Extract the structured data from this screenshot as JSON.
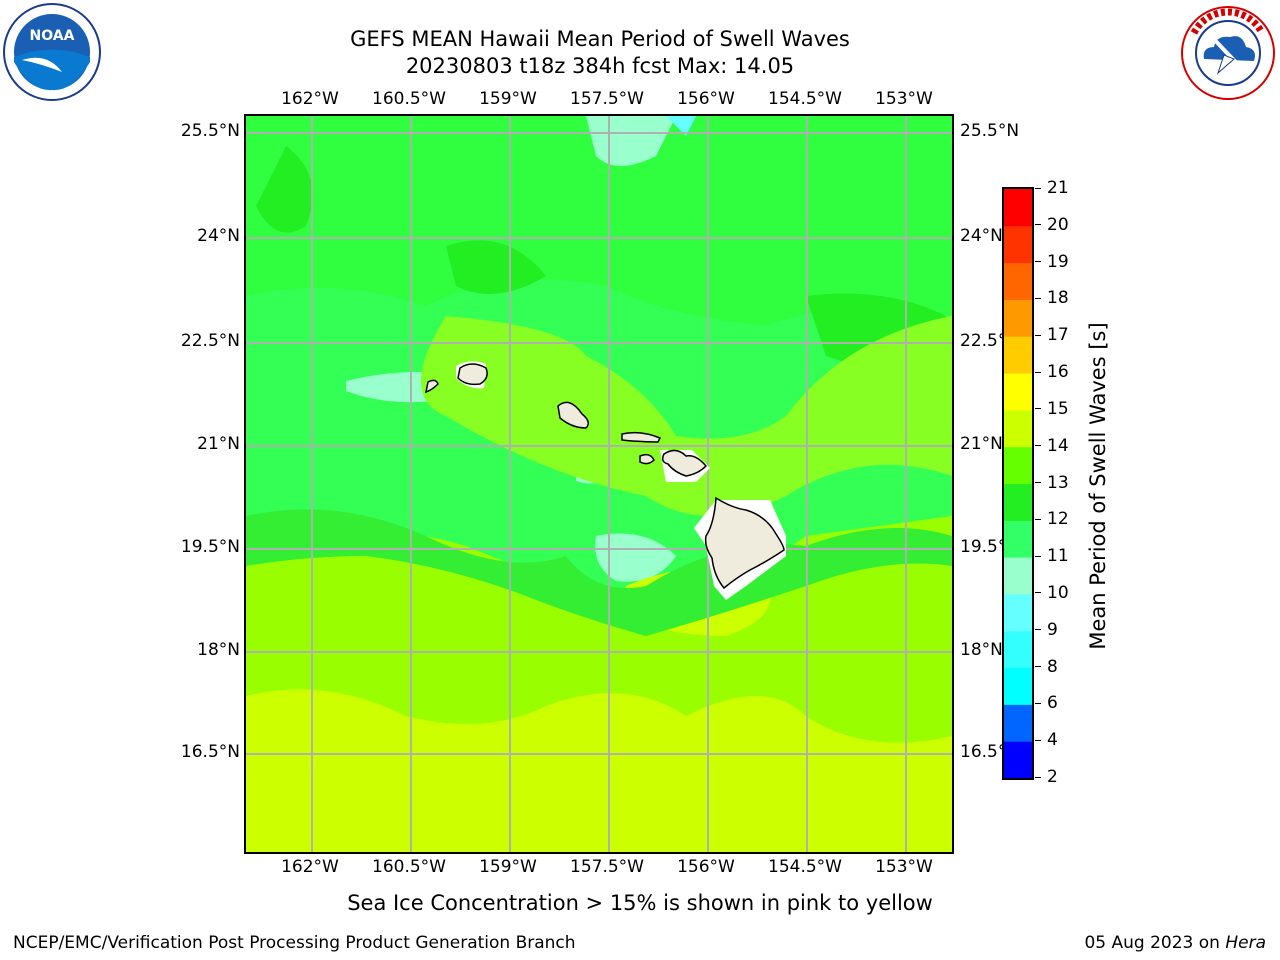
{
  "title": {
    "line1": "GEFS MEAN Hawaii Mean Period of Swell Waves",
    "line2": "20230803 t18z 384h fcst   Max: 14.05"
  },
  "map": {
    "lon_labels": [
      "162°W",
      "160.5°W",
      "159°W",
      "157.5°W",
      "156°W",
      "154.5°W",
      "153°W"
    ],
    "lat_labels": [
      "25.5°N",
      "24°N",
      "22.5°N",
      "21°N",
      "19.5°N",
      "18°N",
      "16.5°N"
    ],
    "background_color": "#33ff33"
  },
  "colorbar": {
    "label": "Mean Period of Swell Waves [s]",
    "ticks": [
      "2",
      "4",
      "6",
      "8",
      "9",
      "10",
      "11",
      "12",
      "13",
      "14",
      "15",
      "16",
      "17",
      "18",
      "19",
      "20",
      "21"
    ],
    "colors": [
      "#0000ff",
      "#0066ff",
      "#00ffff",
      "#33ffff",
      "#66ffff",
      "#99ffcc",
      "#33ff66",
      "#22ee22",
      "#66ff00",
      "#ccff00",
      "#ffff00",
      "#ffcc00",
      "#ff9900",
      "#ff6600",
      "#ff3300",
      "#ff0000"
    ]
  },
  "note": "Sea Ice Concentration > 15% is shown in pink to yellow",
  "footer": {
    "left": "NCEP/EMC/Verification Post Processing Product Generation Branch",
    "date": "05 Aug 2023 on ",
    "machine": "Hera"
  },
  "logos": {
    "noaa": {
      "text": "NOAA",
      "icon": "noaa-logo-icon"
    },
    "nws": {
      "icon": "nws-logo-icon"
    }
  }
}
